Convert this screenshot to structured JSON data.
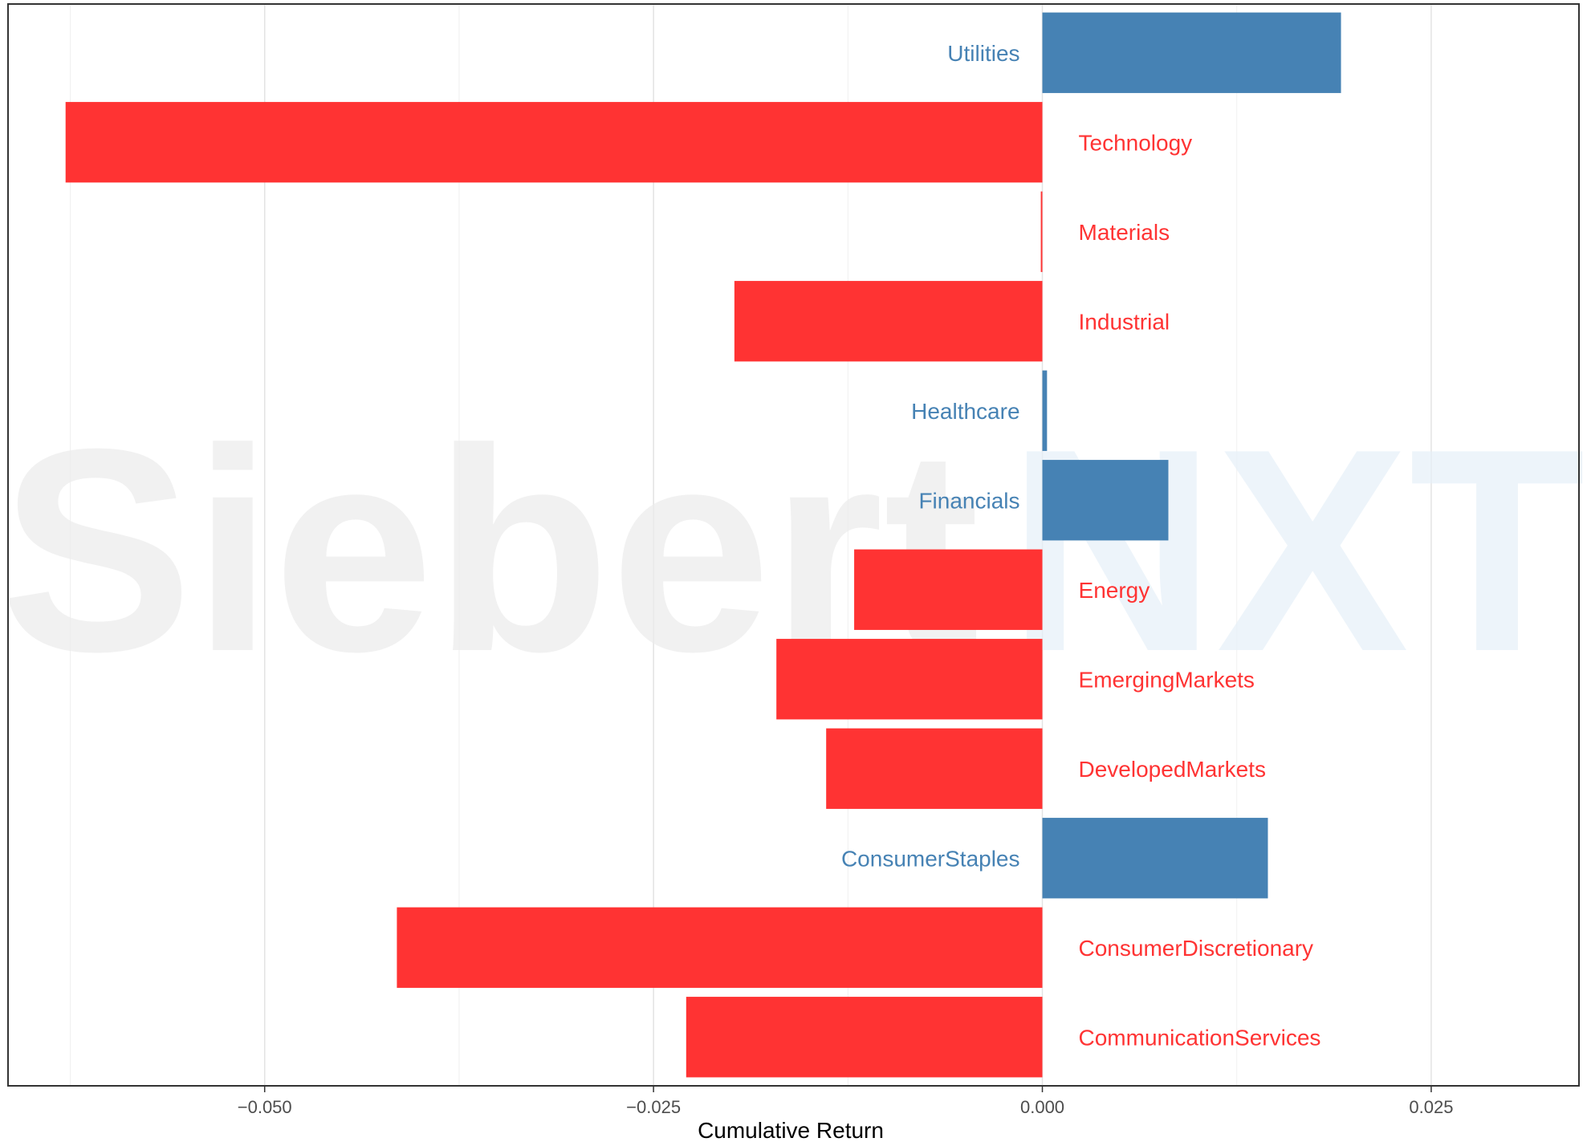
{
  "chart_data": {
    "type": "bar",
    "orientation": "horizontal",
    "title": "",
    "xlabel": "Cumulative Return",
    "ylabel": "",
    "xlim": [
      -0.0665,
      0.0345
    ],
    "x_ticks": [
      {
        "value": -0.05,
        "label": "−0.050"
      },
      {
        "value": -0.025,
        "label": "−0.025"
      },
      {
        "value": 0.0,
        "label": "0.000"
      },
      {
        "value": 0.025,
        "label": "0.025"
      }
    ],
    "grid": true,
    "legend": "none",
    "categories": [
      "Utilities",
      "Technology",
      "Materials",
      "Industrial",
      "Healthcare",
      "Financials",
      "Energy",
      "EmergingMarkets",
      "DevelopedMarkets",
      "ConsumerStaples",
      "ConsumerDiscretionary",
      "CommunicationServices"
    ],
    "values": [
      0.0192,
      -0.0628,
      -0.0001,
      -0.0198,
      0.0003,
      0.0081,
      -0.0121,
      -0.0171,
      -0.0139,
      0.0145,
      -0.0415,
      -0.0229
    ],
    "positive_color": "#4682B4",
    "negative_color": "#FF3333"
  },
  "watermark": {
    "part1": "Siebert",
    "part2": "NXT"
  }
}
